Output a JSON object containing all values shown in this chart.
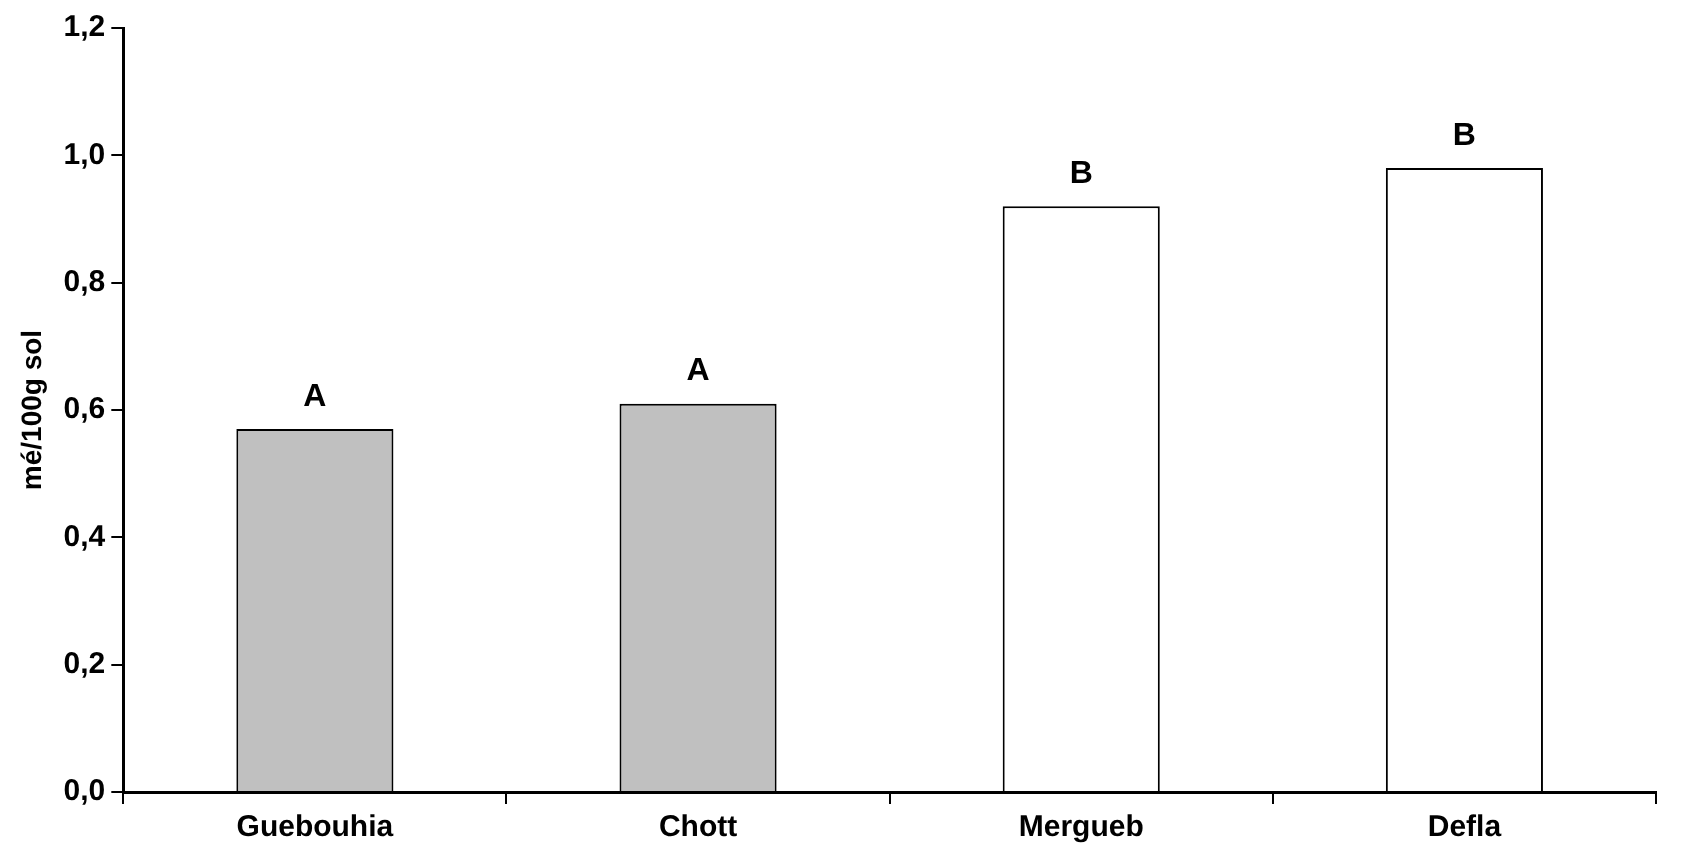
{
  "chart_data": {
    "type": "bar",
    "ylabel": "mé/100g sol",
    "categories": [
      "Guebouhia",
      "Chott",
      "Mergueb",
      "Defla"
    ],
    "values": [
      0.57,
      0.61,
      0.92,
      0.98
    ],
    "colors": [
      "#c0c0c0",
      "#c0c0c0",
      "#ffffff",
      "#ffffff"
    ],
    "ylim": [
      0,
      1.2
    ],
    "yticks": [
      {
        "value": 0,
        "label": "0,0"
      },
      {
        "value": 0.2,
        "label": "0,2"
      },
      {
        "value": 0.4,
        "label": "0,4"
      },
      {
        "value": 0.6,
        "label": "0,6"
      },
      {
        "value": 0.8,
        "label": "0,8"
      },
      {
        "value": 1,
        "label": "1,0"
      },
      {
        "value": 1.2,
        "label": "1,2"
      }
    ],
    "annotations": [
      {
        "text": "A",
        "x": "Guebouhia",
        "y": 0.57
      },
      {
        "text": "A",
        "x": "Chott",
        "y": 0.61
      },
      {
        "text": "B",
        "x": "Mergueb",
        "y": 0.92
      },
      {
        "text": "B",
        "x": "Defla",
        "y": 0.98
      }
    ],
    "grid": false,
    "legend": false
  }
}
